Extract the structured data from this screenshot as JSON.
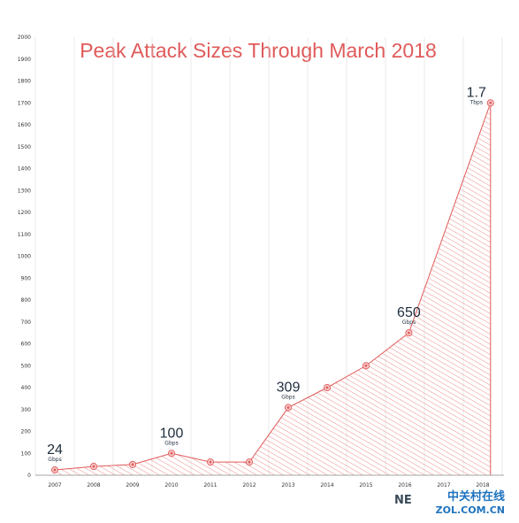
{
  "chart_data": {
    "type": "area",
    "title": "Peak Attack Sizes Through March 2018",
    "xlabel": "",
    "ylabel": "",
    "ylim": [
      0,
      2000
    ],
    "yticks": [
      0,
      100,
      200,
      300,
      400,
      500,
      600,
      700,
      800,
      900,
      1000,
      1100,
      1200,
      1300,
      1400,
      1500,
      1600,
      1700,
      1800,
      1900,
      2000
    ],
    "categories": [
      "2007",
      "2008",
      "2009",
      "2010",
      "2011",
      "2012",
      "2013",
      "2014",
      "2015",
      "2016",
      "2017",
      "2018"
    ],
    "points": [
      {
        "x": 2007.0,
        "y": 24
      },
      {
        "x": 2008.0,
        "y": 40
      },
      {
        "x": 2009.0,
        "y": 49
      },
      {
        "x": 2010.0,
        "y": 100
      },
      {
        "x": 2011.0,
        "y": 60
      },
      {
        "x": 2012.0,
        "y": 60
      },
      {
        "x": 2013.0,
        "y": 309
      },
      {
        "x": 2014.0,
        "y": 400
      },
      {
        "x": 2015.0,
        "y": 500
      },
      {
        "x": 2016.1,
        "y": 650
      },
      {
        "x": 2018.2,
        "y": 1700
      }
    ],
    "annotations": [
      {
        "x": 2007.0,
        "y": 24,
        "value": "24",
        "unit": "Gbps"
      },
      {
        "x": 2010.0,
        "y": 100,
        "value": "100",
        "unit": "Gbps"
      },
      {
        "x": 2013.0,
        "y": 309,
        "value": "309",
        "unit": "Gbps"
      },
      {
        "x": 2016.1,
        "y": 650,
        "value": "650",
        "unit": "Gbps"
      },
      {
        "x": 2018.2,
        "y": 1700,
        "value": "1.7",
        "unit": "Tbps"
      }
    ],
    "grid": "vertical",
    "colors": {
      "line": "#e05a5a",
      "title": "#e05a5a",
      "annotation": "#1f2d3d",
      "grid": "#dddddd"
    }
  },
  "watermark": {
    "main": "中关村在线",
    "sub": "ZOL.COM.CN",
    "logo_text": "NE"
  }
}
